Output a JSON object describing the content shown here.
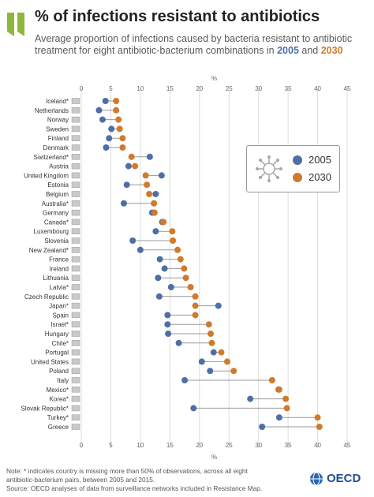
{
  "title": "% of infections resistant to antibiotics",
  "subtitle_pre": "Average proportion of infections caused by bacteria resistant to antibiotic treatment for eight antibiotic-bacterium combinations in ",
  "subtitle_year1": "2005",
  "subtitle_mid": " and ",
  "subtitle_year2": "2030",
  "footnote_line1": "Note: * indicates country is missing more than 50% of observations, across all eight",
  "footnote_line2": "antibiotic-bacterium pairs, between 2005 and 2015.",
  "footnote_line3": "Source: OECD analyses of data from surveillance networks included in Resistance Map.",
  "logo_text": "OECD",
  "colors": {
    "y2005": "#4e6fa6",
    "y2030": "#d17a2c",
    "connector": "#999999",
    "grid": "#dddddd"
  },
  "chart_data": {
    "type": "dumbbell",
    "xlabel": "%",
    "xlim": [
      0,
      45
    ],
    "xticks": [
      0,
      5,
      10,
      15,
      20,
      25,
      30,
      35,
      40,
      45
    ],
    "grid": true,
    "legend_position": "right",
    "legend_icon": "virus-icon",
    "categories": [
      "Iceland*",
      "Netherlands",
      "Norway",
      "Sweden",
      "Finland",
      "Denmark",
      "Switzerland*",
      "Austria",
      "United Kingdom",
      "Estonia",
      "Belgium",
      "Australia*",
      "Germany",
      "Canada*",
      "Luxembourg",
      "Slovenia",
      "New Zealand*",
      "France",
      "Ireland",
      "Lithuania",
      "Latvia*",
      "Czech Republic",
      "Japan*",
      "Spain",
      "Israel*",
      "Hungary",
      "Chile*",
      "Portugal",
      "United States",
      "Poland",
      "Italy",
      "Mexico*",
      "Korea*",
      "Slovak Republic*",
      "Turkey*",
      "Greece"
    ],
    "series": [
      {
        "name": "2005",
        "values": [
          4.1,
          3.0,
          3.6,
          5.1,
          4.7,
          4.2,
          11.6,
          8.0,
          13.6,
          7.7,
          12.6,
          7.2,
          12.0,
          13.7,
          12.6,
          8.7,
          10.0,
          13.3,
          14.1,
          13.0,
          15.2,
          13.2,
          23.2,
          14.6,
          14.6,
          14.7,
          16.5,
          22.4,
          20.4,
          21.8,
          17.5,
          33.4,
          28.6,
          19.0,
          33.5,
          30.6
        ]
      },
      {
        "name": "2030",
        "values": [
          5.9,
          5.9,
          6.3,
          6.5,
          7.0,
          7.0,
          8.5,
          9.1,
          10.9,
          11.1,
          11.5,
          12.3,
          12.4,
          13.9,
          15.4,
          15.5,
          16.3,
          16.8,
          17.4,
          17.7,
          18.5,
          19.3,
          19.3,
          19.3,
          21.6,
          21.9,
          22.1,
          23.7,
          24.7,
          25.8,
          32.3,
          33.5,
          34.6,
          34.8,
          40.0,
          40.3
        ]
      }
    ]
  }
}
